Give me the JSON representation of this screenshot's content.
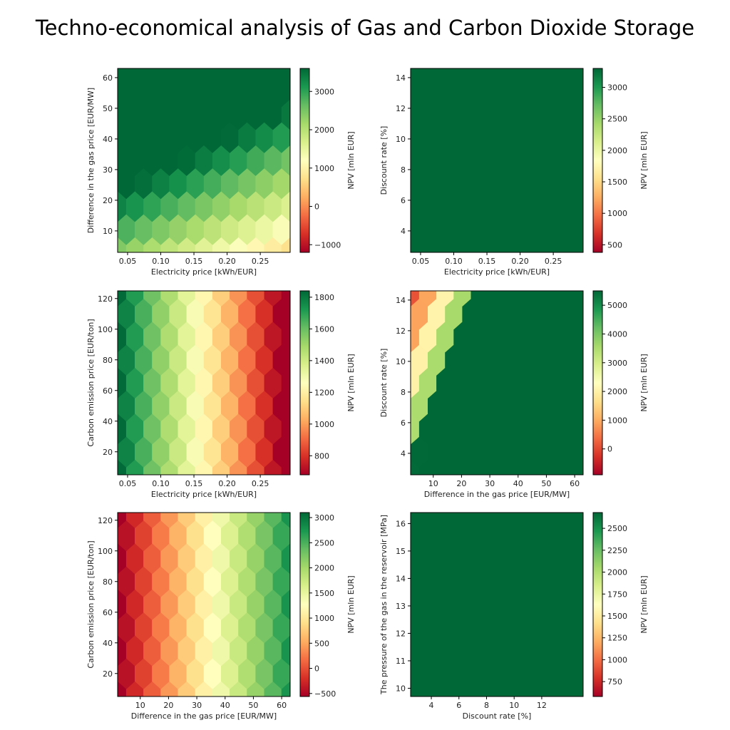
{
  "title": "Techno-economical analysis of Gas and Carbon Dioxide Storage",
  "colormap": {
    "name": "RdYlGn",
    "stops": [
      "#a50026",
      "#d73027",
      "#f46d43",
      "#fdae61",
      "#fee08b",
      "#ffffbf",
      "#d9ef8b",
      "#a6d96a",
      "#66bd63",
      "#1a9850",
      "#006837"
    ]
  },
  "chart_data": [
    {
      "type": "heatmap",
      "subtype": "hexbin",
      "xlabel": "Electricity price [kWh/EUR]",
      "ylabel": "Difference in the gas price [EUR/MW]",
      "colorbar_label": "NPV [mln EUR]",
      "xlim": [
        0.035,
        0.295
      ],
      "ylim": [
        3,
        63
      ],
      "xticks": [
        0.05,
        0.1,
        0.15,
        0.2,
        0.25
      ],
      "xtick_labels": [
        "0.05",
        "0.10",
        "0.15",
        "0.20",
        "0.25"
      ],
      "yticks": [
        10,
        20,
        30,
        40,
        50,
        60
      ],
      "ytick_labels": [
        "10",
        "20",
        "30",
        "40",
        "50",
        "60"
      ],
      "clim": [
        -1200,
        3600
      ],
      "cticks": [
        -1000,
        0,
        1000,
        2000,
        3000
      ],
      "ctick_labels": [
        "−1000",
        "0",
        "1000",
        "2000",
        "3000"
      ],
      "model": {
        "c": 2480,
        "ax": -6500,
        "ay": 60
      },
      "grid": {
        "nx": 10,
        "ny": 8,
        "x0": 0.035,
        "dx": 0.026,
        "y0": 3,
        "dy": 7.4
      }
    },
    {
      "type": "heatmap",
      "subtype": "hexbin",
      "xlabel": "Electricity price [kWh/EUR]",
      "ylabel": "Discount rate [%]",
      "colorbar_label": "NPV [mln EUR]",
      "xlim": [
        0.035,
        0.295
      ],
      "ylim": [
        2.6,
        14.6
      ],
      "xticks": [
        0.05,
        0.1,
        0.15,
        0.2,
        0.25
      ],
      "xtick_labels": [
        "0.05",
        "0.10",
        "0.15",
        "0.20",
        "0.25"
      ],
      "yticks": [
        4,
        6,
        8,
        10,
        12,
        14
      ],
      "ytick_labels": [
        "4",
        "6",
        "8",
        "10",
        "12",
        "14"
      ],
      "clim": [
        380,
        3300
      ],
      "cticks": [
        500,
        1000,
        1500,
        2000,
        2500,
        3000
      ],
      "ctick_labels": [
        "500",
        "1000",
        "1500",
        "2000",
        "2500",
        "3000"
      ],
      "model": {
        "a": 1700,
        "b": 9000,
        "cx": -4.8,
        "cy": 0.3
      },
      "grid": {
        "nx": 10,
        "ny": 8,
        "x0": 0.035,
        "dx": 0.026,
        "y0": 2.6,
        "dy": 1.48
      }
    },
    {
      "type": "heatmap",
      "subtype": "hexbin",
      "xlabel": "Electricity price [kWh/EUR]",
      "ylabel": "Carbon emission price [EUR/ton]",
      "colorbar_label": "NPV [mln EUR]",
      "xlim": [
        0.035,
        0.295
      ],
      "ylim": [
        5,
        125
      ],
      "xticks": [
        0.05,
        0.1,
        0.15,
        0.2,
        0.25
      ],
      "xtick_labels": [
        "0.05",
        "0.10",
        "0.15",
        "0.20",
        "0.25"
      ],
      "yticks": [
        20,
        40,
        60,
        80,
        100,
        120
      ],
      "ytick_labels": [
        "20",
        "40",
        "60",
        "80",
        "100",
        "120"
      ],
      "clim": [
        680,
        1840
      ],
      "cticks": [
        800,
        1000,
        1200,
        1400,
        1600,
        1800
      ],
      "ctick_labels": [
        "800",
        "1000",
        "1200",
        "1400",
        "1600",
        "1800"
      ],
      "model": {
        "c": 2000,
        "ax": -4700,
        "ay": 0
      },
      "grid": {
        "nx": 10,
        "ny": 8,
        "x0": 0.035,
        "dx": 0.026,
        "y0": 5,
        "dy": 14.8
      }
    },
    {
      "type": "heatmap",
      "subtype": "hexbin",
      "xlabel": "Difference in the gas price [EUR/MW]",
      "ylabel": "Discount rate [%]",
      "colorbar_label": "NPV [mln EUR]",
      "xlim": [
        2,
        63
      ],
      "ylim": [
        2.6,
        14.6
      ],
      "xticks": [
        10,
        20,
        30,
        40,
        50,
        60
      ],
      "xtick_labels": [
        "10",
        "20",
        "30",
        "40",
        "50",
        "60"
      ],
      "yticks": [
        4,
        6,
        8,
        10,
        12,
        14
      ],
      "ytick_labels": [
        "4",
        "6",
        "8",
        "10",
        "12",
        "14"
      ],
      "clim": [
        -900,
        5500
      ],
      "cticks": [
        0,
        1000,
        2000,
        3000,
        4000,
        5000
      ],
      "ctick_labels": [
        "0",
        "1000",
        "2000",
        "3000",
        "4000",
        "5000"
      ],
      "model": {
        "a": -2200,
        "b": 9000,
        "cx": 0.05,
        "cy": -0.1
      },
      "grid": {
        "nx": 10,
        "ny": 8,
        "x0": 2,
        "dx": 6.1,
        "y0": 2.6,
        "dy": 1.48
      }
    },
    {
      "type": "heatmap",
      "subtype": "hexbin",
      "xlabel": "Difference in the gas price [EUR/MW]",
      "ylabel": "Carbon emission price [EUR/ton]",
      "colorbar_label": "NPV [mln EUR]",
      "xlim": [
        2,
        63
      ],
      "ylim": [
        5,
        125
      ],
      "xticks": [
        10,
        20,
        30,
        40,
        50,
        60
      ],
      "xtick_labels": [
        "10",
        "20",
        "30",
        "40",
        "50",
        "60"
      ],
      "yticks": [
        20,
        40,
        60,
        80,
        100,
        120
      ],
      "ytick_labels": [
        "20",
        "40",
        "60",
        "80",
        "100",
        "120"
      ],
      "clim": [
        -560,
        3100
      ],
      "cticks": [
        -500,
        0,
        500,
        1000,
        1500,
        2000,
        2500,
        3000
      ],
      "ctick_labels": [
        "−500",
        "0",
        "500",
        "1000",
        "1500",
        "2000",
        "2500",
        "3000"
      ],
      "model": {
        "c": -700,
        "ax": 55,
        "ay": 0
      },
      "grid": {
        "nx": 10,
        "ny": 8,
        "x0": 2,
        "dx": 6.1,
        "y0": 5,
        "dy": 14.8
      }
    },
    {
      "type": "heatmap",
      "subtype": "hexbin",
      "xlabel": "Discount rate [%]",
      "ylabel": "The pressure of the gas in the reservoir [MPa]",
      "colorbar_label": "NPV [mln EUR]",
      "xlim": [
        2.5,
        15
      ],
      "ylim": [
        9.7,
        16.4
      ],
      "xticks": [
        4,
        6,
        8,
        10,
        12
      ],
      "xtick_labels": [
        "4",
        "6",
        "8",
        "10",
        "12"
      ],
      "yticks": [
        10,
        11,
        12,
        13,
        14,
        15,
        16
      ],
      "ytick_labels": [
        "10",
        "11",
        "12",
        "13",
        "14",
        "15",
        "16"
      ],
      "clim": [
        580,
        2680
      ],
      "cticks": [
        750,
        1000,
        1250,
        1500,
        1750,
        2000,
        2250,
        2500
      ],
      "ctick_labels": [
        "750",
        "1000",
        "1250",
        "1500",
        "1750",
        "2000",
        "2250",
        "2500"
      ],
      "model": {
        "a": 650,
        "b": 3300,
        "cx": 0.4,
        "cy": -0.12,
        "ref": 9.7
      },
      "grid": {
        "nx": 10,
        "ny": 8,
        "x0": 2.5,
        "dx": 1.25,
        "y0": 9.7,
        "dy": 0.84
      }
    }
  ]
}
